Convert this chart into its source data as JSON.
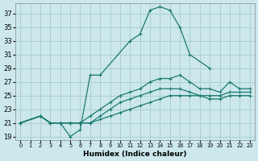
{
  "xlabel": "Humidex (Indice chaleur)",
  "bg_color": "#cce8ec",
  "grid_color": "#aacfd4",
  "line_color": "#1a7a6e",
  "xlim": [
    -0.5,
    23.5
  ],
  "ylim": [
    18.5,
    38.5
  ],
  "xticks": [
    0,
    1,
    2,
    3,
    4,
    5,
    6,
    7,
    8,
    9,
    10,
    11,
    12,
    13,
    14,
    15,
    16,
    17,
    18,
    19,
    20,
    21,
    22,
    23
  ],
  "yticks": [
    19,
    21,
    23,
    25,
    27,
    29,
    31,
    33,
    35,
    37
  ],
  "series": [
    {
      "x": [
        0,
        2,
        3,
        4,
        5,
        6,
        7,
        8,
        11,
        12,
        13,
        14,
        15,
        16,
        17,
        19
      ],
      "y": [
        21,
        22,
        21,
        21,
        19,
        20,
        28,
        28,
        33,
        34,
        37.5,
        38,
        37.5,
        35,
        31,
        29
      ]
    },
    {
      "x": [
        0,
        2,
        3,
        4,
        5,
        6,
        7,
        8,
        9,
        10,
        11,
        12,
        13,
        14,
        15,
        16,
        17,
        18,
        19,
        20,
        21,
        22,
        23
      ],
      "y": [
        21,
        22,
        21,
        21,
        21,
        21,
        22,
        23,
        24,
        25,
        25.5,
        26,
        27,
        27.5,
        27.5,
        28,
        27,
        26,
        26,
        25.5,
        27,
        26,
        26
      ]
    },
    {
      "x": [
        0,
        2,
        3,
        4,
        5,
        6,
        7,
        8,
        9,
        10,
        11,
        12,
        13,
        14,
        15,
        16,
        17,
        18,
        19,
        20,
        21,
        22,
        23
      ],
      "y": [
        21,
        22,
        21,
        21,
        21,
        21,
        21,
        22,
        23,
        24,
        24.5,
        25,
        25.5,
        26,
        26,
        26,
        25.5,
        25,
        25,
        25,
        25.5,
        25.5,
        25.5
      ]
    },
    {
      "x": [
        0,
        2,
        3,
        4,
        5,
        6,
        7,
        8,
        9,
        10,
        11,
        12,
        13,
        14,
        15,
        16,
        17,
        18,
        19,
        20,
        21,
        22,
        23
      ],
      "y": [
        21,
        22,
        21,
        21,
        21,
        21,
        21,
        21.5,
        22,
        22.5,
        23,
        23.5,
        24,
        24.5,
        25,
        25,
        25,
        25,
        24.5,
        24.5,
        25,
        25,
        25
      ]
    }
  ]
}
